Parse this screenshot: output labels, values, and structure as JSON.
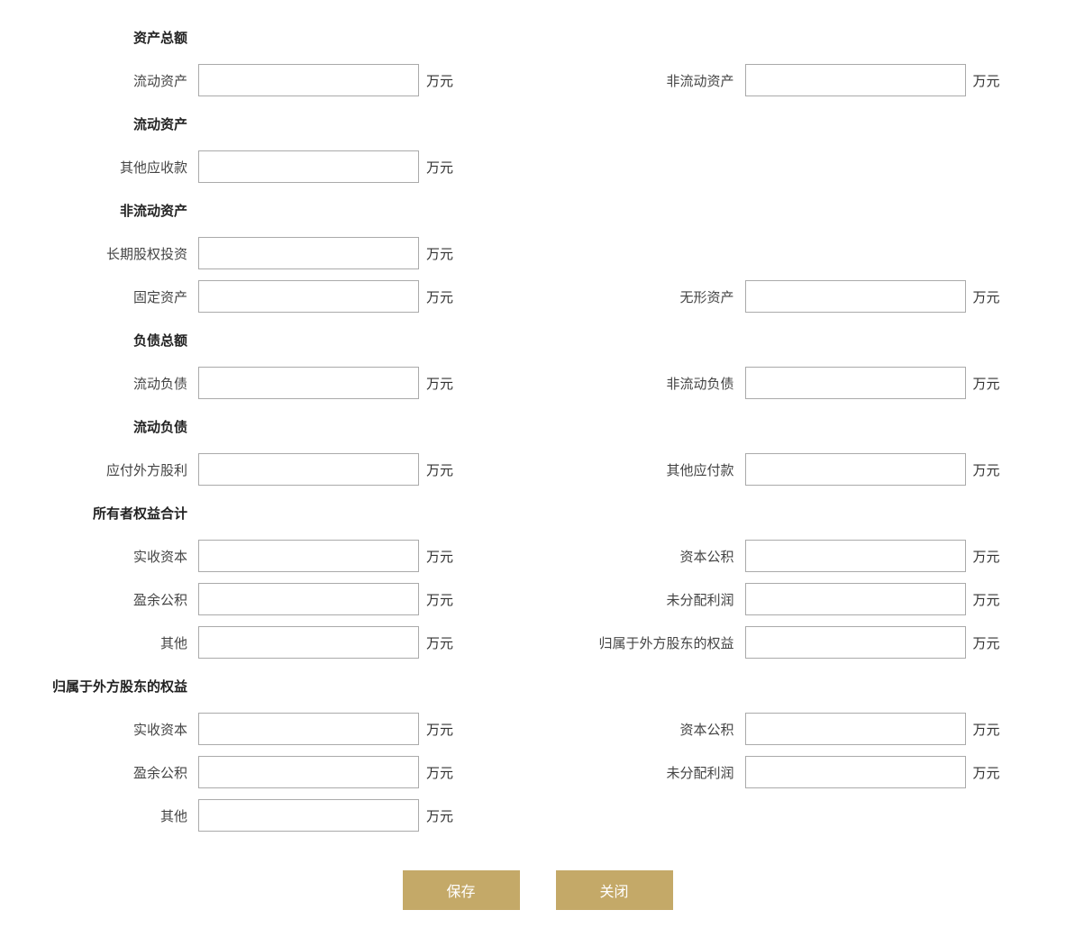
{
  "unit": "万元",
  "sections": {
    "total_assets": {
      "header": "资产总额",
      "current_assets_label": "流动资产",
      "non_current_assets_label": "非流动资产"
    },
    "current_assets": {
      "header": "流动资产",
      "other_receivables_label": "其他应收款"
    },
    "non_current_assets": {
      "header": "非流动资产",
      "long_term_equity_label": "长期股权投资",
      "fixed_assets_label": "固定资产",
      "intangible_assets_label": "无形资产"
    },
    "total_liabilities": {
      "header": "负债总额",
      "current_liabilities_label": "流动负债",
      "non_current_liabilities_label": "非流动负债"
    },
    "current_liabilities": {
      "header": "流动负债",
      "foreign_dividends_payable_label": "应付外方股利",
      "other_payables_label": "其他应付款"
    },
    "owners_equity": {
      "header": "所有者权益合计",
      "paid_in_capital_label": "实收资本",
      "capital_reserve_label": "资本公积",
      "surplus_reserve_label": "盈余公积",
      "undistributed_profit_label": "未分配利润",
      "other_label": "其他",
      "foreign_shareholder_equity_label": "归属于外方股东的权益"
    },
    "foreign_shareholder_equity": {
      "header": "归属于外方股东的权益",
      "paid_in_capital_label": "实收资本",
      "capital_reserve_label": "资本公积",
      "surplus_reserve_label": "盈余公积",
      "undistributed_profit_label": "未分配利润",
      "other_label": "其他"
    }
  },
  "buttons": {
    "save": "保存",
    "close": "关闭"
  },
  "colors": {
    "button_bg": "#c4a968",
    "button_text": "#ffffff",
    "input_border": "#aaaaaa",
    "text": "#333333"
  }
}
